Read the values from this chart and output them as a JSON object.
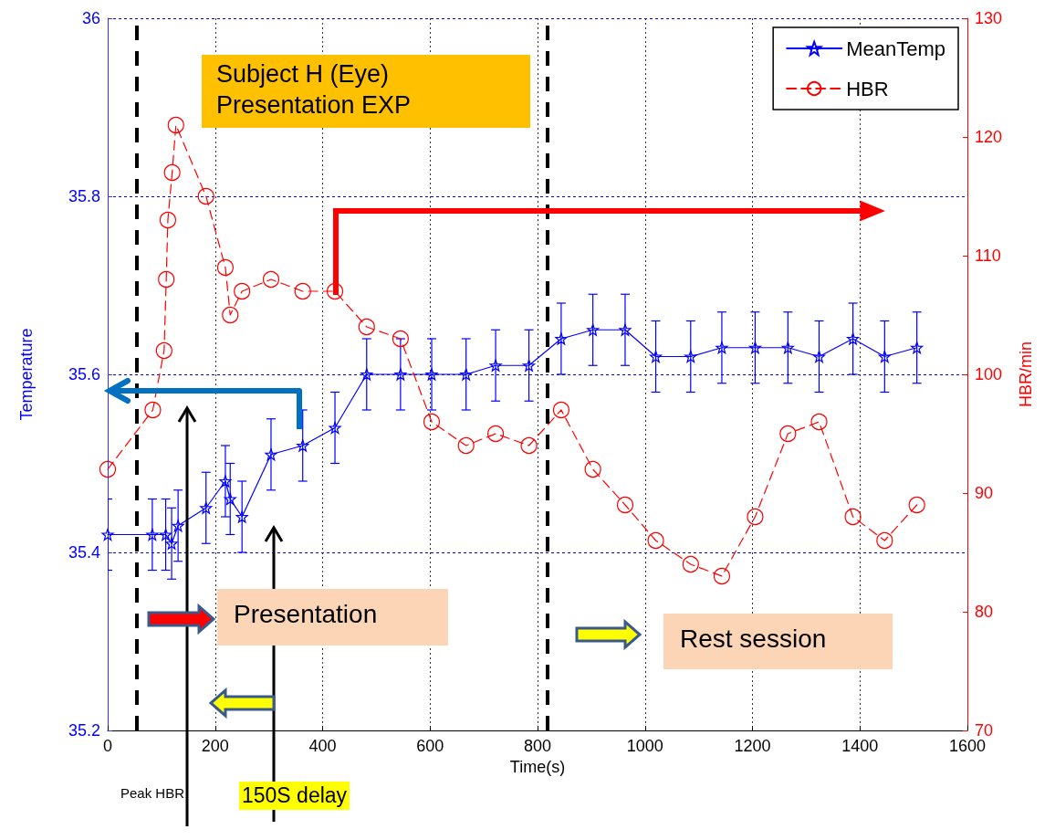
{
  "chart_data": {
    "type": "line",
    "title": "Subject H (Eye)\nPresentation EXP",
    "xlabel": "Time(s)",
    "ylabel": "Temperature",
    "y2label": "HBR/min",
    "series": [
      {
        "name": "MeanTemp",
        "color": "#0000ff",
        "marker": "star",
        "line_style": "solid",
        "x": [
          0,
          83,
          108,
          119,
          131,
          183,
          219,
          228,
          250,
          304,
          363,
          423,
          482,
          545,
          603,
          667,
          722,
          784,
          844,
          903,
          963,
          1020,
          1085,
          1143,
          1205,
          1266,
          1324,
          1387,
          1446,
          1506
        ],
        "values": [
          35.42,
          35.42,
          35.42,
          35.41,
          35.43,
          35.45,
          35.48,
          35.46,
          35.44,
          35.51,
          35.52,
          35.54,
          35.6,
          35.6,
          35.6,
          35.6,
          35.61,
          35.61,
          35.64,
          35.65,
          35.65,
          35.62,
          35.62,
          35.63,
          35.63,
          35.63,
          35.62,
          35.64,
          35.62,
          35.63
        ],
        "errors": [
          0.04,
          0.04,
          0.04,
          0.04,
          0.04,
          0.04,
          0.04,
          0.04,
          0.04,
          0.04,
          0.04,
          0.04,
          0.04,
          0.04,
          0.04,
          0.04,
          0.04,
          0.04,
          0.04,
          0.04,
          0.04,
          0.04,
          0.04,
          0.04,
          0.04,
          0.04,
          0.04,
          0.04,
          0.04,
          0.04
        ]
      },
      {
        "name": "HBR",
        "color": "#ff0000",
        "marker": "circle",
        "line_style": "dashed",
        "axis": "y2",
        "x": [
          0,
          84,
          105,
          109,
          112,
          120,
          127,
          183,
          219,
          228,
          250,
          304,
          363,
          423,
          482,
          545,
          603,
          667,
          722,
          784,
          844,
          903,
          963,
          1020,
          1085,
          1143,
          1205,
          1266,
          1324,
          1387,
          1446,
          1506
        ],
        "values": [
          92,
          97,
          102,
          108,
          113,
          117,
          121,
          115,
          109,
          105,
          107,
          108,
          107,
          107,
          104,
          103,
          96,
          94,
          95,
          94,
          97,
          92,
          89,
          86,
          84,
          83,
          88,
          95,
          96,
          88,
          86,
          89
        ]
      }
    ],
    "xlim": [
      0,
      1600
    ],
    "xticks": [
      0,
      200,
      400,
      600,
      800,
      1000,
      1200,
      1400,
      1600
    ],
    "ylim": [
      35.2,
      36
    ],
    "yticks": [
      35.2,
      35.4,
      35.6,
      35.8,
      36
    ],
    "y2lim": [
      70,
      130
    ],
    "y2ticks": [
      70,
      80,
      90,
      100,
      110,
      120,
      130
    ],
    "grid": true,
    "legend": "top right",
    "ref_lines": [
      {
        "axis": "x",
        "value": 54,
        "color": "#000000",
        "line_style": "dashed"
      },
      {
        "axis": "x",
        "value": 818,
        "color": "#000000",
        "line_style": "dashed"
      }
    ],
    "annotations": [
      "Presentation",
      "Rest session",
      "Peak HBR",
      "150S delay"
    ]
  }
}
